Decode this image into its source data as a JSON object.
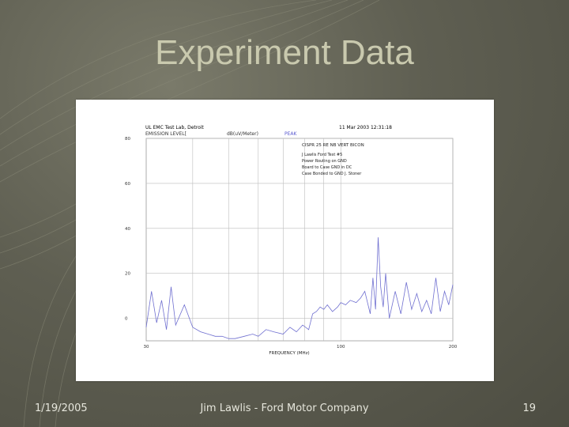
{
  "slide": {
    "title": "Experiment Data",
    "footer_date": "1/19/2005",
    "footer_center": "Jim Lawlis - Ford Motor Company",
    "page_number": "19"
  },
  "colors": {
    "title": "#c9c9ae",
    "trace": "#7070d0",
    "grid": "#bdbdbd"
  },
  "chart_data": {
    "type": "line",
    "header_left": [
      "UL EMC Test Lab, Detroit",
      "EMISSION LEVEL["
    ],
    "header_unit": "dB(uV/Meter)",
    "header_detector": "PEAK",
    "header_date": "11 Mar 2003 12:31:18",
    "notes": [
      "CISPR 25 RE NB VERT BICON",
      "J Lawlis Ford Test #5",
      "Power Routing on GND",
      "Board to Case GND in DC",
      "Case Bonded to GND J. Stoner"
    ],
    "xlabel": "FREQUENCY (MHz)",
    "x_ticks": [
      "30",
      "100",
      "200"
    ],
    "y_ticks": [
      "80",
      "60",
      "40",
      "20",
      "0"
    ],
    "ylim": [
      -10,
      80
    ],
    "xlim": [
      30,
      200
    ],
    "x_scale": "log",
    "grid": true,
    "series": [
      {
        "x": [
          30,
          31,
          32,
          33,
          34,
          35,
          36,
          38,
          40,
          42,
          44,
          46,
          48,
          50,
          52,
          55,
          58,
          60,
          63,
          66,
          70,
          73,
          76,
          79,
          82,
          84,
          86,
          88,
          90,
          92,
          95,
          98,
          100,
          103,
          106,
          110,
          113,
          116,
          120,
          122,
          124,
          126,
          128,
          130,
          132,
          135,
          140,
          145,
          150,
          155,
          160,
          165,
          170,
          175,
          180,
          185,
          190,
          195,
          200
        ],
        "y": [
          -4,
          12,
          -2,
          8,
          -5,
          14,
          -3,
          6,
          -4,
          -6,
          -7,
          -8,
          -8,
          -9,
          -9,
          -8,
          -7,
          -8,
          -5,
          -6,
          -7,
          -4,
          -6,
          -3,
          -5,
          2,
          3,
          5,
          4,
          6,
          3,
          5,
          7,
          6,
          8,
          7,
          9,
          12,
          2,
          18,
          4,
          36,
          14,
          5,
          20,
          0,
          12,
          2,
          16,
          4,
          11,
          3,
          8,
          2,
          18,
          3,
          12,
          6,
          15
        ]
      }
    ]
  }
}
